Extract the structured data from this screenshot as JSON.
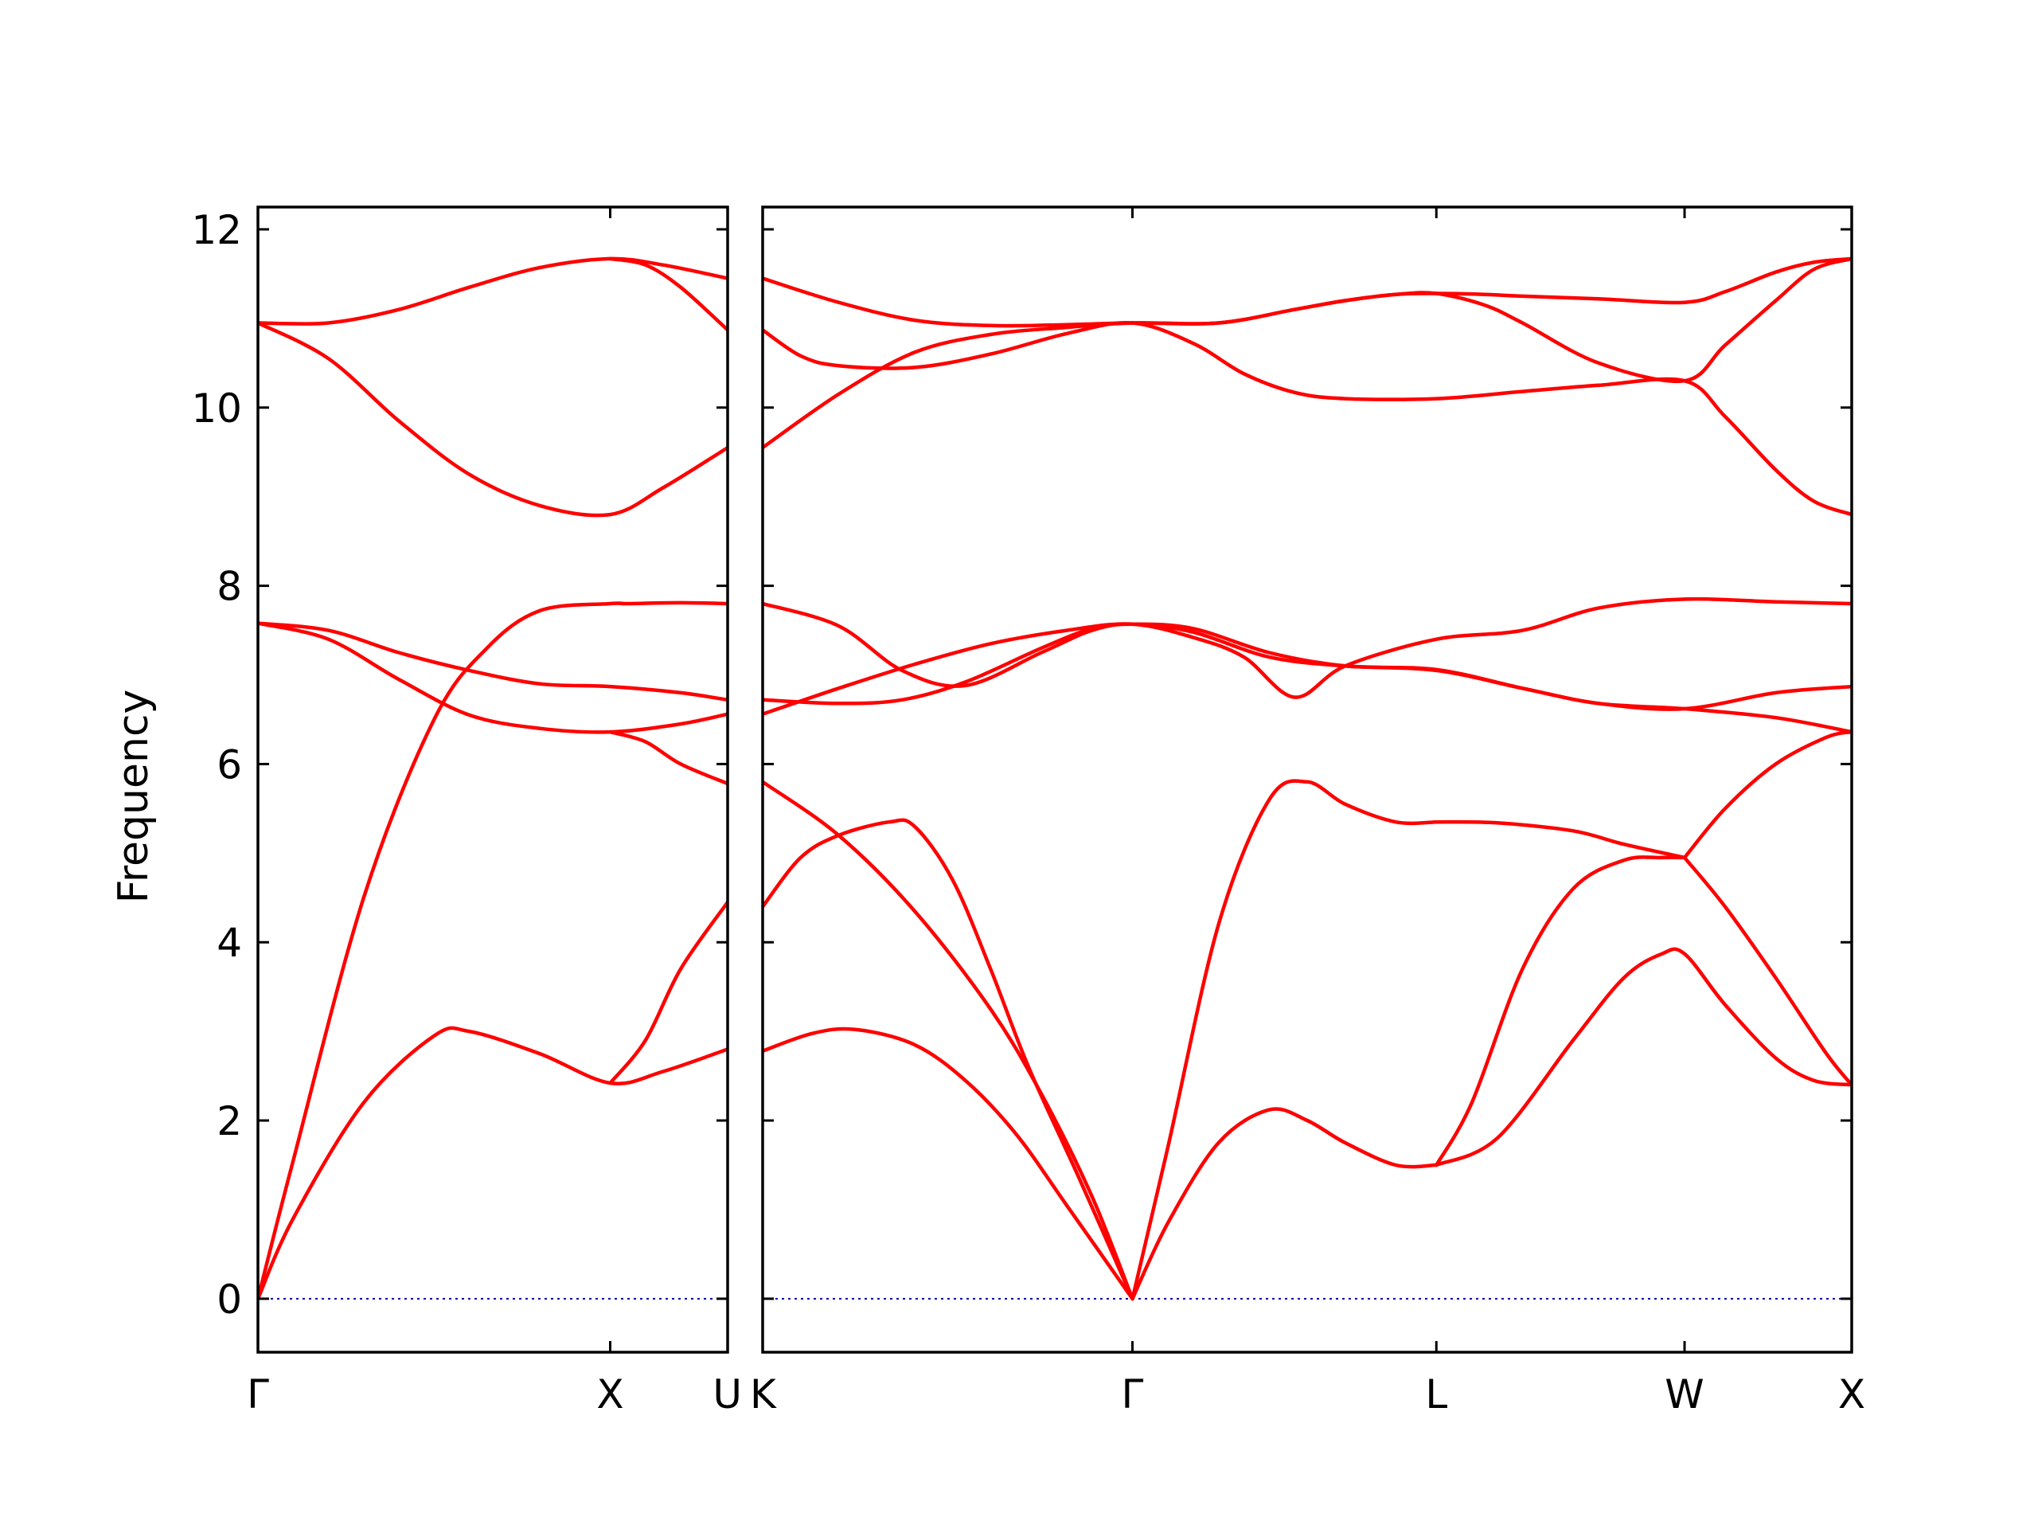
{
  "chart_data": {
    "type": "line",
    "title": "",
    "ylabel": "Frequency",
    "xlabel": "",
    "ylim": [
      -0.6,
      12.25
    ],
    "yticks": [
      "0",
      "2",
      "4",
      "6",
      "8",
      "10",
      "12"
    ],
    "grid": false,
    "legend": "none",
    "band_color": "#ff0000",
    "zero_line_color": "#0000aa",
    "panels": [
      {
        "name": "panel-1",
        "xlim": [
          0,
          1.3333
        ],
        "ticks": [
          {
            "x": 0,
            "label": "Γ"
          },
          {
            "x": 1.0,
            "label": "X"
          },
          {
            "x": 1.3333,
            "label": "U"
          }
        ],
        "series": [
          {
            "x": [
              0,
              0.1,
              0.3,
              0.5,
              0.6,
              0.8,
              1.0,
              1.15,
              1.3333
            ],
            "y": [
              0,
              0.9,
              2.2,
              2.95,
              3.0,
              2.75,
              2.42,
              2.55,
              2.8
            ]
          },
          {
            "x": [
              0,
              0.1,
              0.3,
              0.5,
              0.65,
              0.8,
              1.0,
              1.05,
              1.2,
              1.3333
            ],
            "y": [
              0,
              1.55,
              4.5,
              6.5,
              7.3,
              7.72,
              7.8,
              7.8,
              7.81,
              7.8
            ]
          },
          {
            "x": [
              1.0,
              1.1,
              1.2,
              1.3333
            ],
            "y": [
              2.42,
              2.9,
              3.7,
              4.45
            ]
          },
          {
            "x": [
              0,
              0.2,
              0.4,
              0.6,
              0.8,
              1.0,
              1.2,
              1.3333
            ],
            "y": [
              7.58,
              7.5,
              7.25,
              7.05,
              6.9,
              6.87,
              6.8,
              6.72
            ]
          },
          {
            "x": [
              0,
              0.2,
              0.4,
              0.6,
              0.8,
              1.0,
              1.2,
              1.3333
            ],
            "y": [
              7.58,
              7.4,
              6.95,
              6.55,
              6.4,
              6.36,
              6.45,
              6.56
            ]
          },
          {
            "x": [
              1.0,
              1.1,
              1.2,
              1.3333
            ],
            "y": [
              6.36,
              6.25,
              6.0,
              5.78
            ]
          },
          {
            "x": [
              0,
              0.2,
              0.4,
              0.6,
              0.8,
              1.0,
              1.15,
              1.3333
            ],
            "y": [
              10.95,
              10.95,
              11.1,
              11.35,
              11.57,
              11.67,
              11.6,
              11.45
            ]
          },
          {
            "x": [
              1.0,
              1.1,
              1.2,
              1.3333
            ],
            "y": [
              11.67,
              11.6,
              11.35,
              10.87
            ]
          },
          {
            "x": [
              0,
              0.2,
              0.4,
              0.6,
              0.8,
              1.0,
              1.15,
              1.3333
            ],
            "y": [
              10.95,
              10.55,
              9.85,
              9.25,
              8.9,
              8.8,
              9.1,
              9.55
            ]
          }
        ]
      },
      {
        "name": "panel-2",
        "xlim": [
          0,
          4.3
        ],
        "ticks": [
          {
            "x": 0,
            "label": "K"
          },
          {
            "x": 1.46,
            "label": "Γ"
          },
          {
            "x": 2.66,
            "label": "L"
          },
          {
            "x": 3.64,
            "label": "W"
          },
          {
            "x": 4.3,
            "label": "X"
          }
        ],
        "series": [
          {
            "x": [
              0,
              0.2,
              0.37,
              0.6,
              0.8,
              1.0,
              1.2,
              1.46
            ],
            "y": [
              2.78,
              2.98,
              3.02,
              2.85,
              2.45,
              1.85,
              1.05,
              0
            ]
          },
          {
            "x": [
              0,
              0.3,
              0.6,
              0.9,
              1.1,
              1.3,
              1.46
            ],
            "y": [
              5.8,
              5.2,
              4.35,
              3.25,
              2.3,
              1.15,
              0
            ]
          },
          {
            "x": [
              0,
              0.15,
              0.3,
              0.5,
              0.6,
              0.75,
              0.9,
              1.05,
              1.25,
              1.46
            ],
            "y": [
              4.4,
              4.95,
              5.2,
              5.35,
              5.3,
              4.7,
              3.7,
              2.6,
              1.35,
              0
            ]
          },
          {
            "x": [
              1.46,
              1.6,
              1.8,
              2.0,
              2.15,
              2.3,
              2.5,
              2.66
            ],
            "y": [
              0,
              0.85,
              1.75,
              2.12,
              2.0,
              1.75,
              1.5,
              1.5
            ]
          },
          {
            "x": [
              1.46,
              1.6,
              1.8,
              2.0,
              2.15,
              2.3,
              2.5,
              2.66
            ],
            "y": [
              0,
              1.7,
              4.2,
              5.6,
              5.8,
              5.55,
              5.35,
              5.35
            ]
          },
          {
            "x": [
              2.66,
              2.9,
              3.2,
              3.4,
              3.55,
              3.64,
              3.8,
              4.0,
              4.15,
              4.3
            ],
            "y": [
              1.5,
              1.8,
              2.9,
              3.6,
              3.87,
              3.87,
              3.3,
              2.7,
              2.45,
              2.4
            ]
          },
          {
            "x": [
              2.66,
              2.8,
              3.0,
              3.2,
              3.4,
              3.55,
              3.64
            ],
            "y": [
              1.5,
              2.2,
              3.7,
              4.6,
              4.92,
              4.95,
              4.95
            ]
          },
          {
            "x": [
              2.66,
              2.9,
              3.2,
              3.4,
              3.64
            ],
            "y": [
              5.35,
              5.34,
              5.25,
              5.1,
              4.95
            ]
          },
          {
            "x": [
              3.64,
              3.8,
              4.0,
              4.2,
              4.3
            ],
            "y": [
              4.95,
              4.4,
              3.6,
              2.75,
              2.4
            ]
          },
          {
            "x": [
              3.64,
              3.8,
              4.0,
              4.2,
              4.3
            ],
            "y": [
              4.95,
              5.5,
              6.0,
              6.3,
              6.36
            ]
          },
          {
            "x": [
              0,
              0.3,
              0.6,
              0.9,
              1.2,
              1.46,
              1.7,
              1.9,
              2.1,
              2.3,
              2.66,
              3.0,
              3.3,
              3.64,
              4.0,
              4.3
            ],
            "y": [
              6.56,
              6.85,
              7.12,
              7.35,
              7.5,
              7.57,
              7.42,
              7.2,
              6.75,
              7.1,
              7.4,
              7.5,
              7.75,
              7.85,
              7.82,
              7.8
            ]
          },
          {
            "x": [
              0,
              0.3,
              0.55,
              0.8,
              1.1,
              1.3,
              1.46,
              1.7,
              2.0,
              2.3,
              2.66,
              3.0,
              3.3,
              3.64,
              4.0,
              4.3
            ],
            "y": [
              6.72,
              6.68,
              6.72,
              6.92,
              7.3,
              7.52,
              7.57,
              7.52,
              7.25,
              7.1,
              7.06,
              6.85,
              6.68,
              6.62,
              6.52,
              6.36
            ]
          },
          {
            "x": [
              0,
              0.3,
              0.55,
              0.8,
              1.1,
              1.3,
              1.46,
              1.7,
              2.0,
              2.3,
              2.66,
              3.0,
              3.3,
              3.64,
              4.0,
              4.3
            ],
            "y": [
              7.8,
              7.55,
              7.05,
              6.88,
              7.25,
              7.5,
              7.57,
              7.48,
              7.2,
              7.1,
              7.05,
              6.85,
              6.68,
              6.62,
              6.8,
              6.87
            ]
          },
          {
            "x": [
              0,
              0.3,
              0.6,
              0.9,
              1.2,
              1.46,
              1.8,
              2.1,
              2.3,
              2.5,
              2.66,
              2.85,
              3.0,
              3.3,
              3.64,
              3.8,
              4.0,
              4.15,
              4.3
            ],
            "y": [
              11.45,
              11.18,
              10.98,
              10.92,
              10.93,
              10.95,
              10.95,
              11.1,
              11.2,
              11.27,
              11.28,
              11.27,
              11.25,
              11.22,
              11.18,
              11.3,
              11.52,
              11.63,
              11.67
            ]
          },
          {
            "x": [
              0,
              0.15,
              0.3,
              0.6,
              0.9,
              1.2,
              1.46,
              1.7,
              1.9,
              2.1,
              2.3,
              2.66,
              3.0,
              3.3,
              3.64,
              3.8,
              4.0,
              4.15,
              4.3
            ],
            "y": [
              10.87,
              10.58,
              10.47,
              10.45,
              10.6,
              10.83,
              10.95,
              10.72,
              10.38,
              10.17,
              10.1,
              10.1,
              10.18,
              10.25,
              10.3,
              9.9,
              9.3,
              8.95,
              8.8
            ]
          },
          {
            "x": [
              0,
              0.3,
              0.6,
              0.9,
              1.2,
              1.46,
              1.8,
              2.1,
              2.3,
              2.5,
              2.66,
              2.85,
              3.0,
              3.3,
              3.64,
              3.8,
              4.0,
              4.15,
              4.3
            ],
            "y": [
              9.55,
              10.15,
              10.62,
              10.82,
              10.9,
              10.95,
              10.95,
              11.1,
              11.2,
              11.27,
              11.28,
              11.15,
              10.95,
              10.5,
              10.3,
              10.7,
              11.2,
              11.55,
              11.67
            ]
          }
        ]
      }
    ]
  }
}
